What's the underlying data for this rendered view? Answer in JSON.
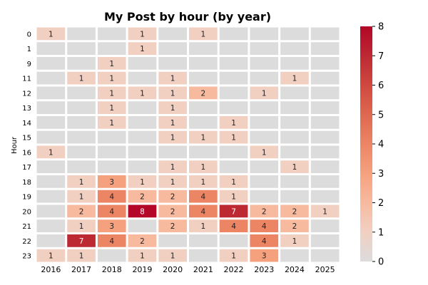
{
  "chart_data": {
    "type": "heatmap",
    "title": "My Post by hour (by year)",
    "xlabel": "",
    "ylabel": "Hour",
    "x_categories": [
      "2016",
      "2017",
      "2018",
      "2019",
      "2020",
      "2021",
      "2022",
      "2023",
      "2024",
      "2025"
    ],
    "y_categories": [
      "0",
      "1",
      "9",
      "11",
      "12",
      "13",
      "14",
      "15",
      "16",
      "17",
      "18",
      "19",
      "20",
      "21",
      "22",
      "23"
    ],
    "values": [
      [
        1,
        0,
        0,
        1,
        0,
        1,
        0,
        0,
        0,
        0
      ],
      [
        0,
        0,
        0,
        1,
        0,
        0,
        0,
        0,
        0,
        0
      ],
      [
        0,
        0,
        1,
        0,
        0,
        0,
        0,
        0,
        0,
        0
      ],
      [
        0,
        1,
        1,
        0,
        1,
        0,
        0,
        0,
        1,
        0
      ],
      [
        0,
        0,
        1,
        1,
        1,
        2,
        0,
        1,
        0,
        0
      ],
      [
        0,
        0,
        1,
        0,
        1,
        0,
        0,
        0,
        0,
        0
      ],
      [
        0,
        0,
        1,
        0,
        1,
        0,
        1,
        0,
        0,
        0
      ],
      [
        0,
        0,
        0,
        0,
        1,
        1,
        1,
        0,
        0,
        0
      ],
      [
        1,
        0,
        0,
        0,
        0,
        0,
        0,
        1,
        0,
        0
      ],
      [
        0,
        0,
        0,
        0,
        1,
        1,
        0,
        0,
        1,
        0
      ],
      [
        0,
        1,
        3,
        1,
        1,
        1,
        1,
        0,
        0,
        0
      ],
      [
        0,
        1,
        4,
        2,
        2,
        4,
        1,
        0,
        0,
        0
      ],
      [
        0,
        2,
        4,
        8,
        2,
        4,
        7,
        2,
        2,
        1
      ],
      [
        0,
        1,
        3,
        0,
        2,
        1,
        4,
        4,
        2,
        0
      ],
      [
        0,
        7,
        4,
        2,
        0,
        0,
        0,
        4,
        1,
        0
      ],
      [
        1,
        1,
        0,
        1,
        1,
        0,
        1,
        3,
        0,
        0
      ]
    ],
    "zero_cell_color": "#dcdcdc",
    "colormap": "coolwarm",
    "colorbar": {
      "min": 0,
      "max": 8,
      "ticks": [
        0,
        1,
        2,
        3,
        4,
        5,
        6,
        7,
        8
      ]
    },
    "grid": false,
    "annotate_nonzero": true
  }
}
